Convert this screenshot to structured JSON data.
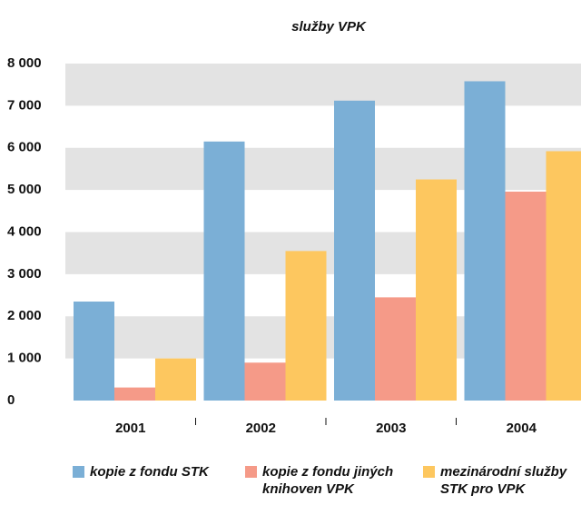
{
  "chart_data": {
    "type": "bar",
    "title": "služby VPK",
    "categories": [
      "2001",
      "2002",
      "2003",
      "2004"
    ],
    "series": [
      {
        "name": "kopie z fondu STK",
        "color": "#7bafd6",
        "values": [
          2350,
          6150,
          7120,
          7580
        ]
      },
      {
        "name": "kopie z fondu jiných knihoven VPK",
        "color": "#f59a88",
        "values": [
          310,
          900,
          2450,
          4960
        ]
      },
      {
        "name": "mezinárodní služby STK pro VPK",
        "color": "#fdc75f",
        "values": [
          1000,
          3550,
          5250,
          5920
        ]
      }
    ],
    "ylim": [
      0,
      8000
    ],
    "yticks": [
      0,
      {
        "value": 1000,
        "label": "1 000"
      },
      {
        "value": 2000,
        "label": "2 000"
      },
      {
        "value": 3000,
        "label": "3 000"
      },
      {
        "value": 4000,
        "label": "4 000"
      },
      {
        "value": 5000,
        "label": "5 000"
      },
      {
        "value": 6000,
        "label": "6 000"
      },
      {
        "value": 7000,
        "label": "7 000"
      },
      {
        "value": 8000,
        "label": "8 000"
      }
    ],
    "grid": true,
    "legend": "bottom"
  }
}
